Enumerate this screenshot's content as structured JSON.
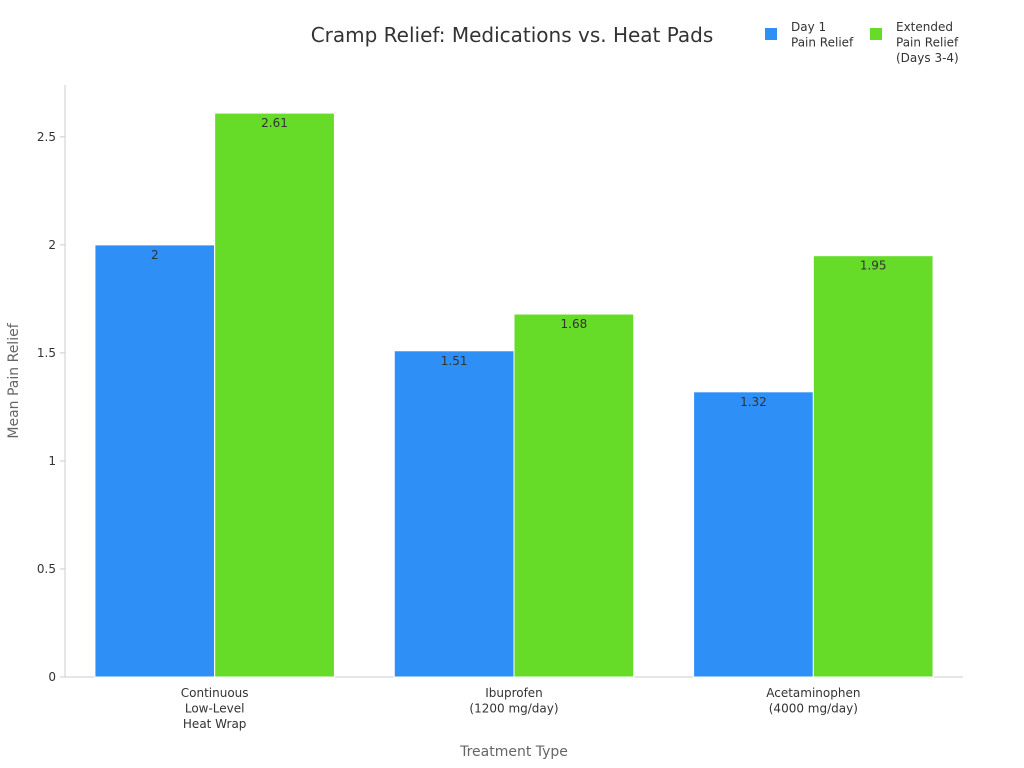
{
  "chart_data": {
    "type": "bar",
    "title": "Cramp Relief: Medications vs. Heat Pads",
    "x_label": "Treatment Type",
    "y_label": "Mean Pain Relief",
    "categories": [
      "Continuous\nLow-Level\nHeat Wrap",
      "Ibuprofen\n(1200 mg/day)",
      "Acetaminophen\n(4000 mg/day)"
    ],
    "series": [
      {
        "name": "Day 1\nPain Relief",
        "color": "#2e90f7",
        "values": [
          2,
          1.51,
          1.32
        ]
      },
      {
        "name": "Extended\nPain Relief\n(Days 3-4)",
        "color": "#66db28",
        "values": [
          2.61,
          1.68,
          1.95
        ]
      }
    ],
    "ylim": [
      0,
      2.74
    ],
    "yticks": [
      0,
      0.5,
      1,
      1.5,
      2,
      2.5
    ],
    "grid": false,
    "legend": "upper right"
  }
}
